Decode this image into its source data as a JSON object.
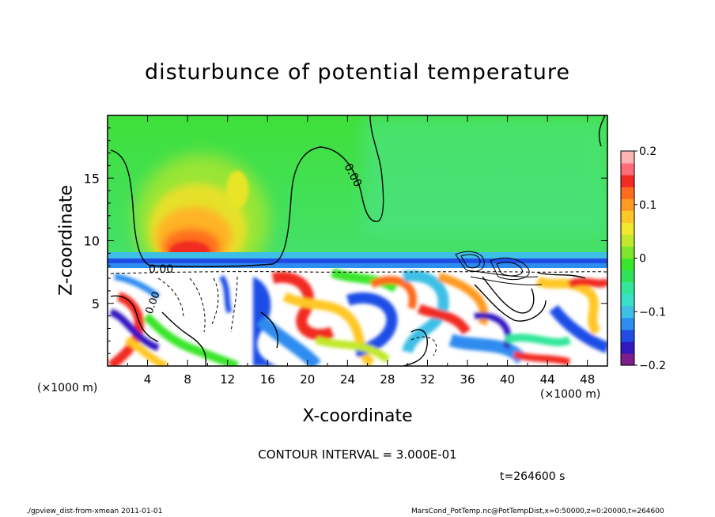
{
  "chart_data": {
    "type": "heatmap",
    "title": "disturbunce of potential temperature",
    "xlabel": "X-coordinate",
    "ylabel": "Z-coordinate",
    "x_unit": "(×1000 m)",
    "xlim": [
      0,
      50
    ],
    "ylim": [
      0,
      20
    ],
    "x_ticks": [
      "4",
      "8",
      "12",
      "16",
      "20",
      "24",
      "28",
      "32",
      "36",
      "40",
      "44",
      "48"
    ],
    "y_ticks": [
      "5",
      "10",
      "15"
    ],
    "colorbar": {
      "range": [
        -0.2,
        0.2
      ],
      "tick_labels": [
        "0.2",
        "0.1",
        "0",
        "−0.1",
        "−0.2"
      ],
      "colors": [
        "#7d1e8c",
        "#3318c0",
        "#1f4de6",
        "#2d8cf0",
        "#3dbfe6",
        "#37e0c7",
        "#33e69a",
        "#2fe25c",
        "#3ae62c",
        "#7be62c",
        "#c1e82c",
        "#efe82f",
        "#ffc727",
        "#ff9a22",
        "#ff6a1f",
        "#f22a24",
        "#ff6e78",
        "#ffb4b4"
      ]
    },
    "contour_labels": [
      "0.00",
      "0.00",
      "0.00"
    ],
    "contour_interval": 0.3,
    "time_s": 264600
  },
  "text": {
    "contour": "CONTOUR INTERVAL = 3.000E-01",
    "time": "t=264600 s",
    "footer_left": "./gpview_dist-from-xmean   2011-01-01",
    "footer_right": "MarsCond_PotTemp.nc@PotTempDist,x=0:50000,z=0:20000,t=264600"
  }
}
